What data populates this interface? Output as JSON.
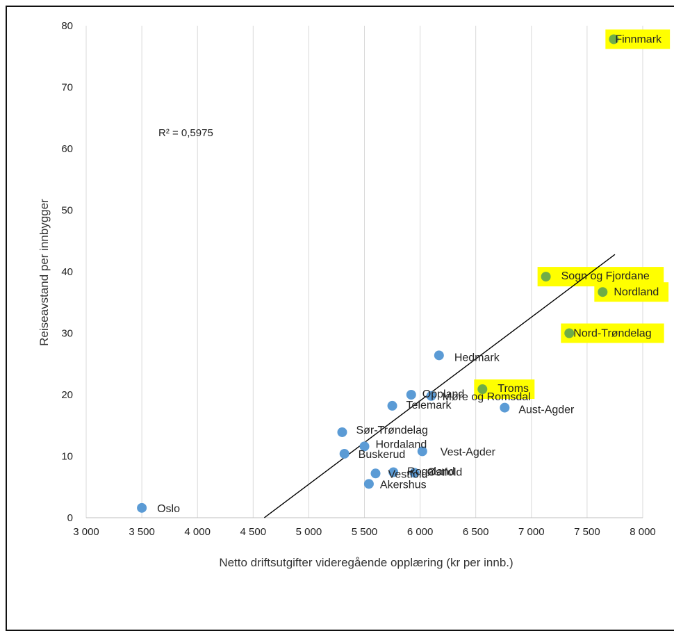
{
  "chart_data": {
    "type": "scatter",
    "xlabel": "Netto driftsutgifter videregående opplæring (kr per innb.)",
    "ylabel": "Reiseavstand per innbygger",
    "xlim": [
      3000,
      8000
    ],
    "ylim": [
      0,
      80
    ],
    "x_ticks": [
      3000,
      3500,
      4000,
      4500,
      5000,
      5500,
      6000,
      6500,
      7000,
      7500,
      8000
    ],
    "x_tick_labels": [
      "3 000",
      "3 500",
      "4 000",
      "4 500",
      "5 000",
      "5 500",
      "6 000",
      "6 500",
      "7 000",
      "7 500",
      "8 000"
    ],
    "y_ticks": [
      0,
      10,
      20,
      30,
      40,
      50,
      60,
      70,
      80
    ],
    "y_tick_labels": [
      "0",
      "10",
      "20",
      "30",
      "40",
      "50",
      "60",
      "70",
      "80"
    ],
    "grid": "vertical",
    "annotation": "R² = 0,5975",
    "trendline": {
      "x": [
        4600,
        7750
      ],
      "y": [
        0,
        42.8
      ]
    },
    "colors": {
      "point": "#5b9bd5",
      "highlight_point": "#70ad47",
      "highlight": "#ffff00",
      "trendline": "#000000"
    },
    "points": [
      {
        "name": "Oslo",
        "x": 3500,
        "y": 1.6,
        "highlight": false
      },
      {
        "name": "Akershus",
        "x": 5540,
        "y": 5.5,
        "highlight": false
      },
      {
        "name": "Vestfold",
        "x": 5600,
        "y": 7.2,
        "highlight": false
      },
      {
        "name": "Rogaland",
        "x": 5760,
        "y": 7.4,
        "highlight": false
      },
      {
        "name": "Østfold",
        "x": 5950,
        "y": 7.3,
        "highlight": false
      },
      {
        "name": "Buskerud",
        "x": 5320,
        "y": 10.4,
        "highlight": false
      },
      {
        "name": "Hordaland",
        "x": 5500,
        "y": 11.6,
        "highlight": false
      },
      {
        "name": "Vest-Agder",
        "x": 6020,
        "y": 10.8,
        "highlight": false
      },
      {
        "name": "Sør-Trøndelag",
        "x": 5300,
        "y": 13.9,
        "highlight": false
      },
      {
        "name": "Telemark",
        "x": 5750,
        "y": 18.2,
        "highlight": false
      },
      {
        "name": "Oppland",
        "x": 5920,
        "y": 20.0,
        "highlight": false
      },
      {
        "name": "Møre og Romsdal",
        "x": 6100,
        "y": 19.8,
        "highlight": false
      },
      {
        "name": "Aust-Agder",
        "x": 6760,
        "y": 17.9,
        "highlight": false
      },
      {
        "name": "Troms",
        "x": 6560,
        "y": 20.9,
        "highlight": true
      },
      {
        "name": "Hedmark",
        "x": 6170,
        "y": 26.4,
        "highlight": false
      },
      {
        "name": "Nord-Trøndelag",
        "x": 7340,
        "y": 30.0,
        "highlight": true
      },
      {
        "name": "Nordland",
        "x": 7640,
        "y": 36.7,
        "highlight": true
      },
      {
        "name": "Sogn og Fjordane",
        "x": 7130,
        "y": 39.2,
        "highlight": true
      },
      {
        "name": "Finnmark",
        "x": 7740,
        "y": 77.8,
        "highlight": true
      }
    ]
  }
}
